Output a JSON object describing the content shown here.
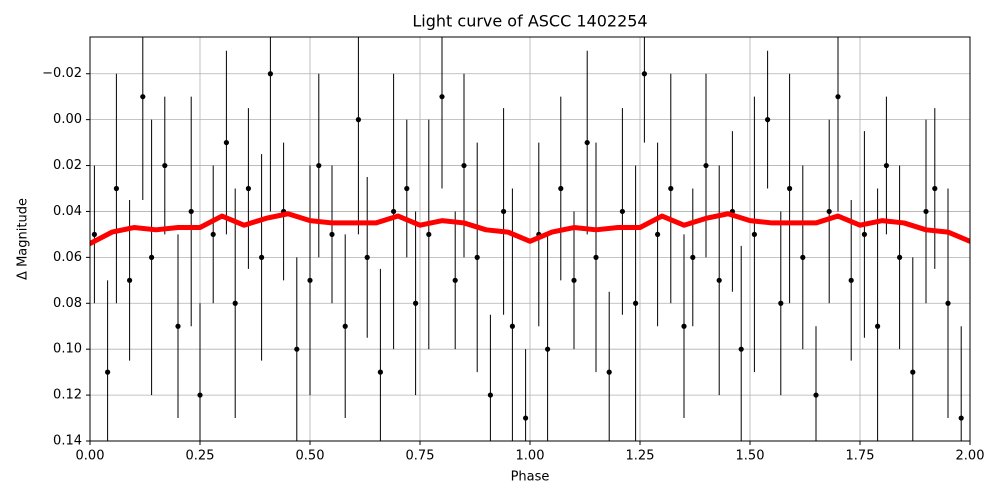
{
  "chart_data": {
    "type": "scatter",
    "title": "Light curve of ASCC 1402254",
    "x_label": "Phase",
    "y_label": "Δ Magnitude",
    "xlim": [
      0,
      2
    ],
    "ylim": [
      -0.036,
      0.14
    ],
    "y_inverted": true,
    "grid": true,
    "xticks": [
      {
        "value": 0,
        "label": "0.00"
      },
      0.25,
      {
        "value": 0.5,
        "label": "0.50"
      },
      0.75,
      {
        "value": 1,
        "label": "1.00"
      },
      1.25,
      {
        "value": 1.5,
        "label": "1.50"
      },
      1.75,
      {
        "value": 2,
        "label": "2.00"
      }
    ],
    "yticks": [
      {
        "value": -0.02,
        "label": "−0.02"
      },
      {
        "value": 0,
        "label": "0.00"
      },
      0.02,
      0.04,
      0.06,
      0.08,
      {
        "value": 0.1,
        "label": "0.10"
      },
      0.12,
      0.14
    ],
    "series": [
      {
        "color": "#000000",
        "x": [
          0.01,
          0.04,
          0.06,
          0.09,
          0.12,
          0.14,
          0.17,
          0.2,
          0.23,
          0.25,
          0.28,
          0.31,
          0.33,
          0.36,
          0.39,
          0.41,
          0.44,
          0.47,
          0.5,
          0.52,
          0.55,
          0.58,
          0.61,
          0.63,
          0.66,
          0.69,
          0.72,
          0.74,
          0.77,
          0.8,
          0.83,
          0.85,
          0.88,
          0.91,
          0.94,
          0.96,
          0.99,
          1.02,
          1.04,
          1.07,
          1.1,
          1.13,
          1.15,
          1.18,
          1.21,
          1.24,
          1.26,
          1.29,
          1.32,
          1.35,
          1.37,
          1.4,
          1.43,
          1.46,
          1.48,
          1.51,
          1.54,
          1.57,
          1.59,
          1.62,
          1.65,
          1.68,
          1.7,
          1.73,
          1.76,
          1.79,
          1.81,
          1.84,
          1.87,
          1.9,
          1.92,
          1.95,
          1.98
        ],
        "values": [
          0.05,
          0.11,
          0.03,
          0.07,
          -0.01,
          0.06,
          0.02,
          0.09,
          0.04,
          0.12,
          0.05,
          0.01,
          0.08,
          0.03,
          0.06,
          -0.02,
          0.04,
          0.1,
          0.07,
          0.02,
          0.05,
          0.09,
          0.0,
          0.06,
          0.11,
          0.04,
          0.03,
          0.08,
          0.05,
          -0.01,
          0.07,
          0.02,
          0.06,
          0.12,
          0.04,
          0.09,
          0.13,
          0.05,
          0.1,
          0.03,
          0.07,
          0.01,
          0.06,
          0.11,
          0.04,
          0.08,
          -0.02,
          0.05,
          0.03,
          0.09,
          0.06,
          0.02,
          0.07,
          0.04,
          0.1,
          0.05,
          0.0,
          0.08,
          0.03,
          0.06,
          0.12,
          0.04,
          -0.01,
          0.07,
          0.05,
          0.09,
          0.02,
          0.06,
          0.11,
          0.04,
          0.03,
          0.08,
          0.13
        ],
        "errors": [
          0.03,
          0.04,
          0.05,
          0.035,
          0.045,
          0.06,
          0.03,
          0.04,
          0.05,
          0.04,
          0.03,
          0.04,
          0.05,
          0.035,
          0.045,
          0.06,
          0.03,
          0.04,
          0.05,
          0.04,
          0.03,
          0.04,
          0.05,
          0.035,
          0.045,
          0.06,
          0.03,
          0.04,
          0.05,
          0.04,
          0.03,
          0.04,
          0.05,
          0.035,
          0.045,
          0.06,
          0.03,
          0.04,
          0.05,
          0.04,
          0.03,
          0.04,
          0.05,
          0.035,
          0.045,
          0.06,
          0.03,
          0.04,
          0.05,
          0.04,
          0.03,
          0.04,
          0.05,
          0.035,
          0.045,
          0.06,
          0.03,
          0.04,
          0.05,
          0.04,
          0.03,
          0.04,
          0.05,
          0.035,
          0.045,
          0.06,
          0.03,
          0.04,
          0.05,
          0.04,
          0.035,
          0.05,
          0.04
        ]
      },
      {
        "color": "#ff0000",
        "x": [
          0,
          0.05,
          0.1,
          0.15,
          0.2,
          0.25,
          0.3,
          0.35,
          0.4,
          0.45,
          0.5,
          0.55,
          0.6,
          0.65,
          0.7,
          0.75,
          0.8,
          0.85,
          0.9,
          0.95,
          1,
          1.05,
          1.1,
          1.15,
          1.2,
          1.25,
          1.3,
          1.35,
          1.4,
          1.45,
          1.5,
          1.55,
          1.6,
          1.65,
          1.7,
          1.75,
          1.8,
          1.85,
          1.9,
          1.95,
          2
        ],
        "values": [
          0.054,
          0.049,
          0.047,
          0.048,
          0.047,
          0.047,
          0.042,
          0.046,
          0.043,
          0.041,
          0.044,
          0.045,
          0.045,
          0.045,
          0.042,
          0.046,
          0.044,
          0.045,
          0.048,
          0.049,
          0.053,
          0.049,
          0.047,
          0.048,
          0.047,
          0.047,
          0.042,
          0.046,
          0.043,
          0.041,
          0.044,
          0.045,
          0.045,
          0.045,
          0.042,
          0.046,
          0.044,
          0.045,
          0.048,
          0.049,
          0.053
        ]
      }
    ]
  }
}
